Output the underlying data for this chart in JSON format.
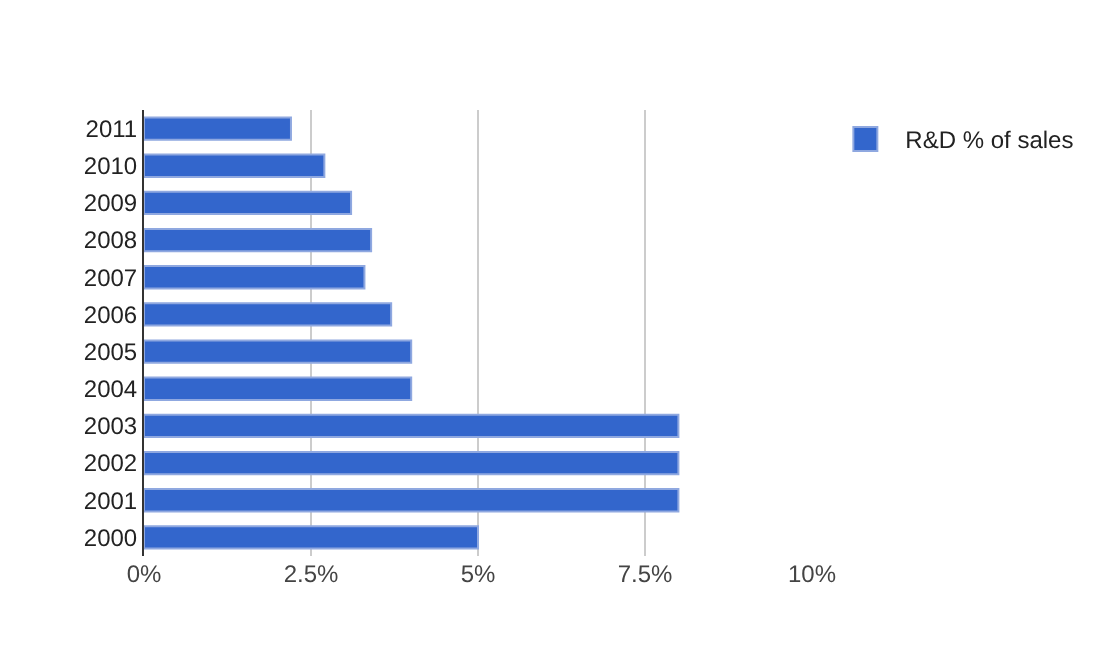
{
  "chart_data": {
    "type": "bar",
    "orientation": "horizontal",
    "categories": [
      "2011",
      "2010",
      "2009",
      "2008",
      "2007",
      "2006",
      "2005",
      "2004",
      "2003",
      "2002",
      "2001",
      "2000"
    ],
    "series": [
      {
        "name": "R&D % of sales",
        "color": "#3366cc",
        "values": [
          2.2,
          2.7,
          3.1,
          3.4,
          3.3,
          3.7,
          4.0,
          4.0,
          8.0,
          8.0,
          8.0,
          5.0
        ]
      }
    ],
    "xlim": [
      0,
      10
    ],
    "xticks": [
      {
        "value": 0,
        "label": "0%"
      },
      {
        "value": 2.5,
        "label": "2.5%"
      },
      {
        "value": 5,
        "label": "5%"
      },
      {
        "value": 7.5,
        "label": "7.5%"
      },
      {
        "value": 10,
        "label": "10%"
      }
    ],
    "grid": "x",
    "legend": "top right"
  }
}
